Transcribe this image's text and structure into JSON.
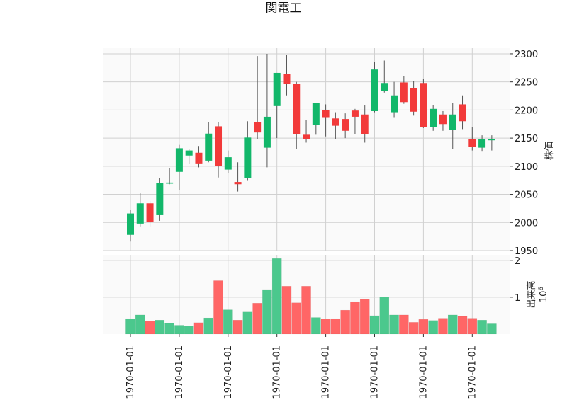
{
  "chart_data": {
    "type": "candlestick",
    "title": "関電工",
    "ylabel_price": "株価",
    "ylabel_volume": "出来高",
    "volume_exponent": "10",
    "volume_exponent_power": "6",
    "price_ylim": [
      1950,
      2310
    ],
    "price_yticks": [
      1950,
      2000,
      2050,
      2100,
      2150,
      2200,
      2250,
      2300
    ],
    "volume_ylim": [
      0,
      2.15
    ],
    "volume_yticks": [
      1,
      2
    ],
    "xticks": [
      "1970-01-01",
      "1970-01-01",
      "1970-01-01",
      "1970-01-01",
      "1970-01-01",
      "1970-01-01",
      "1970-01-01",
      "1970-01-01"
    ],
    "xtick_indices": [
      0,
      5,
      10,
      15,
      20,
      25,
      30,
      35
    ],
    "colors": {
      "up": "#12b76a",
      "down": "#f23a3a",
      "up_volume": "#4bc88d",
      "down_volume": "#ff6666",
      "wick": "#555555"
    },
    "candles": [
      {
        "o": 1978,
        "h": 2022,
        "l": 1966,
        "c": 2016,
        "v": 0.42
      },
      {
        "o": 1998,
        "h": 2052,
        "l": 1993,
        "c": 2034,
        "v": 0.52
      },
      {
        "o": 2034,
        "h": 2038,
        "l": 1993,
        "c": 2001,
        "v": 0.35
      },
      {
        "o": 2013,
        "h": 2079,
        "l": 2003,
        "c": 2070,
        "v": 0.38
      },
      {
        "o": 2069,
        "h": 2096,
        "l": 2068,
        "c": 2071,
        "v": 0.29
      },
      {
        "o": 2090,
        "h": 2138,
        "l": 2057,
        "c": 2132,
        "v": 0.24
      },
      {
        "o": 2119,
        "h": 2130,
        "l": 2104,
        "c": 2128,
        "v": 0.22
      },
      {
        "o": 2124,
        "h": 2136,
        "l": 2098,
        "c": 2105,
        "v": 0.31
      },
      {
        "o": 2110,
        "h": 2178,
        "l": 2107,
        "c": 2158,
        "v": 0.44
      },
      {
        "o": 2171,
        "h": 2178,
        "l": 2080,
        "c": 2100,
        "v": 1.45
      },
      {
        "o": 2094,
        "h": 2128,
        "l": 2088,
        "c": 2116,
        "v": 0.66
      },
      {
        "o": 2072,
        "h": 2107,
        "l": 2055,
        "c": 2068,
        "v": 0.38
      },
      {
        "o": 2079,
        "h": 2180,
        "l": 2074,
        "c": 2151,
        "v": 0.6
      },
      {
        "o": 2179,
        "h": 2296,
        "l": 2148,
        "c": 2160,
        "v": 0.84
      },
      {
        "o": 2133,
        "h": 2300,
        "l": 2098,
        "c": 2188,
        "v": 1.21
      },
      {
        "o": 2207,
        "h": 2266,
        "l": 2150,
        "c": 2266,
        "v": 2.05
      },
      {
        "o": 2264,
        "h": 2298,
        "l": 2226,
        "c": 2247,
        "v": 1.3
      },
      {
        "o": 2247,
        "h": 2250,
        "l": 2130,
        "c": 2157,
        "v": 0.85
      },
      {
        "o": 2156,
        "h": 2182,
        "l": 2142,
        "c": 2148,
        "v": 1.3
      },
      {
        "o": 2173,
        "h": 2212,
        "l": 2156,
        "c": 2212,
        "v": 0.45
      },
      {
        "o": 2200,
        "h": 2210,
        "l": 2153,
        "c": 2186,
        "v": 0.41
      },
      {
        "o": 2185,
        "h": 2196,
        "l": 2148,
        "c": 2172,
        "v": 0.42
      },
      {
        "o": 2184,
        "h": 2194,
        "l": 2150,
        "c": 2163,
        "v": 0.65
      },
      {
        "o": 2199,
        "h": 2202,
        "l": 2157,
        "c": 2188,
        "v": 0.88
      },
      {
        "o": 2192,
        "h": 2208,
        "l": 2142,
        "c": 2157,
        "v": 0.94
      },
      {
        "o": 2198,
        "h": 2286,
        "l": 2196,
        "c": 2272,
        "v": 0.5
      },
      {
        "o": 2234,
        "h": 2288,
        "l": 2231,
        "c": 2248,
        "v": 1.01
      },
      {
        "o": 2196,
        "h": 2250,
        "l": 2186,
        "c": 2226,
        "v": 0.52
      },
      {
        "o": 2249,
        "h": 2260,
        "l": 2211,
        "c": 2214,
        "v": 0.52
      },
      {
        "o": 2239,
        "h": 2251,
        "l": 2190,
        "c": 2197,
        "v": 0.32
      },
      {
        "o": 2248,
        "h": 2255,
        "l": 2168,
        "c": 2170,
        "v": 0.4
      },
      {
        "o": 2170,
        "h": 2209,
        "l": 2163,
        "c": 2202,
        "v": 0.37
      },
      {
        "o": 2192,
        "h": 2198,
        "l": 2163,
        "c": 2175,
        "v": 0.43
      },
      {
        "o": 2165,
        "h": 2212,
        "l": 2130,
        "c": 2192,
        "v": 0.52
      },
      {
        "o": 2210,
        "h": 2226,
        "l": 2166,
        "c": 2180,
        "v": 0.48
      },
      {
        "o": 2148,
        "h": 2169,
        "l": 2128,
        "c": 2135,
        "v": 0.43
      },
      {
        "o": 2133,
        "h": 2155,
        "l": 2126,
        "c": 2148,
        "v": 0.38
      },
      {
        "o": 2148,
        "h": 2155,
        "l": 2128,
        "c": 2148,
        "v": 0.28
      }
    ]
  }
}
